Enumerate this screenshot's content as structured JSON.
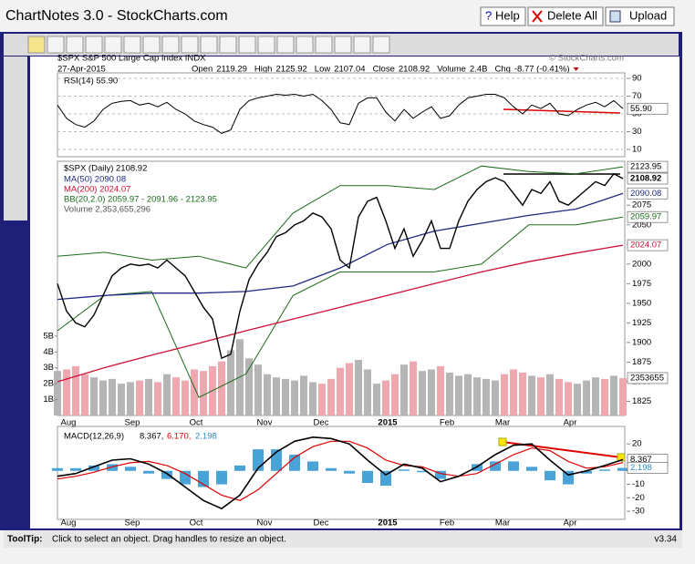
{
  "app": {
    "title": "ChartNotes 3.0 - StockCharts.com",
    "help": "Help",
    "delete_all": "Delete All",
    "upload": "Upload"
  },
  "chart": {
    "symbol": "$SPX S&P 500 Large Cap Index INDX",
    "copyright": "© StockCharts.com",
    "date": "27-Apr-2015",
    "quote": [
      [
        "Open",
        "2119.29"
      ],
      [
        "High",
        "2125.92"
      ],
      [
        "Low",
        "2107.04"
      ],
      [
        "Close",
        "2108.92"
      ],
      [
        "Volume",
        "2.4B"
      ],
      [
        "Chg",
        "-8.77 (-0.41%)"
      ]
    ],
    "months": [
      "Aug",
      "Sep",
      "Oct",
      "Nov",
      "Dec",
      "2015",
      "Feb",
      "Mar",
      "Apr"
    ],
    "rsi": {
      "legend": "RSI(14) 55.90",
      "ylim": [
        0,
        100
      ],
      "yticks": [
        10,
        30,
        50,
        70,
        90
      ],
      "values": [
        60,
        45,
        38,
        35,
        42,
        55,
        62,
        64,
        65,
        60,
        62,
        58,
        63,
        55,
        50,
        42,
        38,
        35,
        28,
        32,
        55,
        65,
        68,
        70,
        72,
        71,
        72,
        70,
        72,
        65,
        55,
        40,
        38,
        62,
        68,
        68,
        52,
        42,
        55,
        45,
        52,
        58,
        45,
        48,
        60,
        68,
        70,
        72,
        72,
        68,
        58,
        50,
        60,
        56,
        62,
        50,
        48,
        55,
        60,
        63,
        58,
        65,
        55.9
      ],
      "last": {
        "value": 55.9,
        "label": "55.90"
      }
    },
    "price": {
      "legend": [
        "$SPX (Daily) 2108.92",
        "MA(50) 2090.08",
        "MA(200) 2024.07",
        "BB(20,2.0) 2059.97 - 2091.96 - 2123.95",
        "Volume 2,353,655,296"
      ],
      "ylim": [
        1807,
        2131
      ],
      "yticks": [
        1825,
        1850,
        1875,
        1900,
        1925,
        1950,
        1975,
        2000,
        2025,
        2050,
        2075
      ],
      "close": [
        1975,
        1940,
        1925,
        1920,
        1935,
        1960,
        1985,
        1995,
        2000,
        1998,
        2000,
        1995,
        2005,
        1995,
        1985,
        1965,
        1945,
        1930,
        1880,
        1885,
        1940,
        1980,
        2000,
        2015,
        2035,
        2040,
        2050,
        2055,
        2065,
        2060,
        2045,
        2005,
        1995,
        2060,
        2080,
        2085,
        2055,
        2020,
        2045,
        2010,
        2030,
        2055,
        2020,
        2020,
        2055,
        2080,
        2095,
        2105,
        2110,
        2105,
        2090,
        2075,
        2095,
        2090,
        2105,
        2080,
        2075,
        2085,
        2095,
        2105,
        2100,
        2115,
        2108.92
      ],
      "ma50": [
        1955,
        1960,
        1963,
        1963,
        1965,
        1972,
        1995,
        2025,
        2042,
        2052,
        2062,
        2070,
        2090.08
      ],
      "ma200": [
        1850,
        1868,
        1884,
        1899,
        1915,
        1930,
        1945,
        1960,
        1975,
        1990,
        2003,
        2014,
        2024.07
      ],
      "bb_upper": [
        2010,
        2015,
        2005,
        2010,
        1995,
        2065,
        2100,
        2100,
        2095,
        2125,
        2118,
        2115,
        2123.95
      ],
      "bb_lower": [
        1915,
        1960,
        1965,
        1830,
        1860,
        1960,
        1990,
        1990,
        1990,
        2000,
        2050,
        2050,
        2059.97
      ],
      "last_labels": [
        2123.95,
        2108.92,
        2090.08,
        2059.97,
        2024.07
      ]
    },
    "volume": {
      "ylim": [
        0,
        16
      ],
      "yticks": [
        {
          "value": 1,
          "label": "1B"
        },
        {
          "value": 2,
          "label": "2B"
        },
        {
          "value": 3,
          "label": "3B"
        },
        {
          "value": 4,
          "label": "4B"
        },
        {
          "value": 5,
          "label": "5B"
        }
      ],
      "values": [
        2.8,
        2.9,
        3.1,
        2.6,
        2.4,
        2.2,
        2.3,
        2.0,
        2.1,
        2.2,
        2.3,
        2.1,
        2.6,
        2.4,
        2.2,
        2.9,
        2.8,
        3.1,
        3.4,
        4.1,
        4.8,
        3.6,
        3.2,
        2.6,
        2.4,
        2.3,
        2.2,
        2.5,
        2.1,
        2.0,
        2.3,
        3.0,
        3.3,
        3.5,
        2.9,
        2.0,
        2.2,
        2.6,
        3.2,
        3.4,
        2.8,
        2.9,
        3.1,
        2.7,
        2.5,
        2.6,
        2.4,
        2.3,
        2.2,
        2.6,
        2.9,
        2.7,
        2.5,
        2.4,
        2.6,
        2.3,
        2.1,
        2.0,
        2.2,
        2.4,
        2.3,
        2.5,
        2.35
      ],
      "last": {
        "value": 2.353655,
        "label": "2353655"
      }
    },
    "macd": {
      "legend": [
        "MACD(12,26,9)",
        "8.367,",
        "6.170,",
        "2.198"
      ],
      "ylim": [
        -36,
        33
      ],
      "yticks": [
        -30,
        -20,
        -10,
        0,
        10,
        20
      ],
      "macd": [
        -4,
        -2,
        3,
        8,
        9,
        5,
        -2,
        -12,
        -22,
        -28,
        -18,
        2,
        14,
        22,
        25,
        24,
        20,
        8,
        -3,
        5,
        2,
        -8,
        -4,
        3,
        12,
        19,
        20,
        8,
        -3,
        0,
        4,
        8.367
      ],
      "signal": [
        -6,
        -4,
        -1,
        3,
        6,
        7,
        4,
        -2,
        -10,
        -18,
        -22,
        -14,
        -2,
        10,
        18,
        22,
        22,
        17,
        8,
        4,
        3,
        -2,
        -4,
        -2,
        5,
        12,
        17,
        15,
        7,
        2,
        3,
        6.17
      ],
      "histogram": [
        2,
        2,
        4,
        5,
        3,
        -2,
        -6,
        -10,
        -12,
        -10,
        4,
        16,
        16,
        12,
        7,
        2,
        -2,
        -9,
        -11,
        1,
        -1,
        -6,
        0,
        5,
        7,
        7,
        3,
        -7,
        -10,
        -2,
        1,
        2.198
      ],
      "last_labels": [
        8.367,
        2.198
      ]
    }
  },
  "status": {
    "tooltip_label": "ToolTip:",
    "tooltip": "Click to select an object. Drag handles to resize an object.",
    "version": "v3.34"
  }
}
